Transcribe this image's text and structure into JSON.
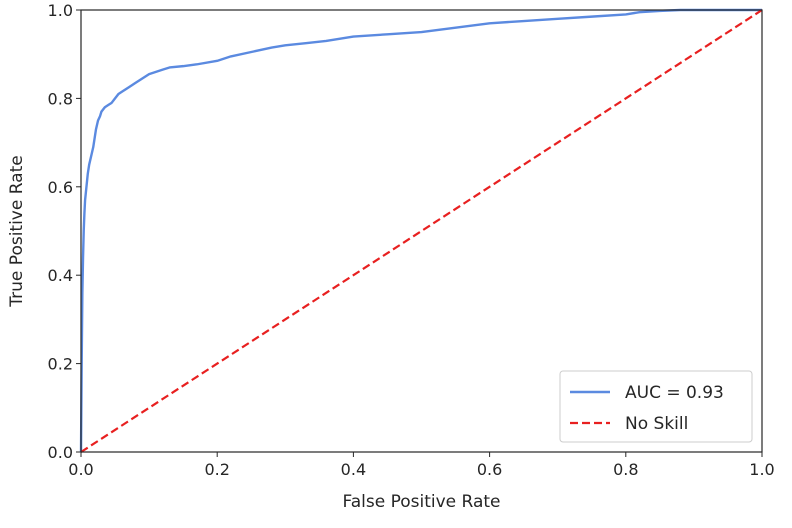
{
  "chart_data": {
    "type": "line",
    "title": "",
    "xlabel": "False Positive Rate",
    "ylabel": "True Positive Rate",
    "xlim": [
      0.0,
      1.0
    ],
    "ylim": [
      0.0,
      1.0
    ],
    "xticks": [
      "0.0",
      "0.2",
      "0.4",
      "0.6",
      "0.8",
      "1.0"
    ],
    "yticks": [
      "0.0",
      "0.2",
      "0.4",
      "0.6",
      "0.8",
      "1.0"
    ],
    "grid": false,
    "legend_position": "lower-right",
    "series": [
      {
        "name": "AUC = 0.93",
        "color": "#5b8ae0",
        "style": "solid",
        "x": [
          0.0,
          0.001,
          0.002,
          0.003,
          0.004,
          0.005,
          0.006,
          0.008,
          0.01,
          0.012,
          0.015,
          0.018,
          0.02,
          0.022,
          0.025,
          0.028,
          0.03,
          0.035,
          0.04,
          0.045,
          0.05,
          0.055,
          0.06,
          0.07,
          0.08,
          0.09,
          0.1,
          0.11,
          0.12,
          0.13,
          0.15,
          0.17,
          0.2,
          0.22,
          0.25,
          0.28,
          0.3,
          0.33,
          0.36,
          0.4,
          0.45,
          0.5,
          0.55,
          0.6,
          0.65,
          0.7,
          0.75,
          0.8,
          0.82,
          0.85,
          0.88,
          1.0
        ],
        "y": [
          0.0,
          0.2,
          0.36,
          0.44,
          0.5,
          0.54,
          0.57,
          0.6,
          0.63,
          0.65,
          0.67,
          0.69,
          0.71,
          0.73,
          0.75,
          0.76,
          0.77,
          0.78,
          0.785,
          0.79,
          0.8,
          0.81,
          0.815,
          0.825,
          0.835,
          0.845,
          0.855,
          0.86,
          0.865,
          0.87,
          0.873,
          0.877,
          0.885,
          0.895,
          0.905,
          0.915,
          0.92,
          0.925,
          0.93,
          0.94,
          0.945,
          0.95,
          0.96,
          0.97,
          0.975,
          0.98,
          0.985,
          0.99,
          0.995,
          0.998,
          1.0,
          1.0
        ]
      },
      {
        "name": "No Skill",
        "color": "#e82020",
        "style": "dashed",
        "x": [
          0.0,
          1.0
        ],
        "y": [
          0.0,
          1.0
        ]
      }
    ]
  }
}
